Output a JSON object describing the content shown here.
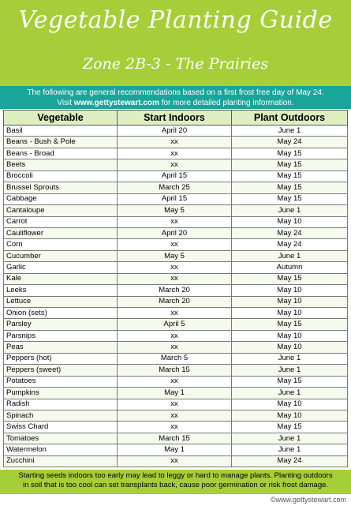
{
  "header": {
    "title": "Vegetable Planting Guide",
    "subtitle": "Zone 2B-3 - The Prairies"
  },
  "note": {
    "line1": "The following are general recommendations based on a first frost free day of May 24.",
    "line2_prefix": "Visit ",
    "line2_link": "www.gettystewart.com",
    "line2_suffix": " for more detailed planting information."
  },
  "table": {
    "headers": [
      "Vegetable",
      "Start Indoors",
      "Plant Outdoors"
    ],
    "rows": [
      [
        "Basil",
        "April 20",
        "June 1"
      ],
      [
        "Beans - Bush & Pole",
        "xx",
        "May 24"
      ],
      [
        "Beans - Broad",
        "xx",
        "May 15"
      ],
      [
        "Beets",
        "xx",
        "May 15"
      ],
      [
        "Broccoli",
        "April 15",
        "May 15"
      ],
      [
        "Brussel Sprouts",
        "March 25",
        "May 15"
      ],
      [
        "Cabbage",
        "April 15",
        "May 15"
      ],
      [
        "Cantaloupe",
        "May 5",
        "June 1"
      ],
      [
        "Carrot",
        "xx",
        "May 10"
      ],
      [
        "Cauliflower",
        "April 20",
        "May 24"
      ],
      [
        "Corn",
        "xx",
        "May 24"
      ],
      [
        "Cucumber",
        "May 5",
        "June 1"
      ],
      [
        "Garlic",
        "xx",
        "Autumn"
      ],
      [
        "Kale",
        "xx",
        "May 15"
      ],
      [
        "Leeks",
        "March 20",
        "May 10"
      ],
      [
        "Lettuce",
        "March 20",
        "May 10"
      ],
      [
        "Onion (sets)",
        "xx",
        "May 10"
      ],
      [
        "Parsley",
        "April 5",
        "May 15"
      ],
      [
        "Parsnips",
        "xx",
        "May 10"
      ],
      [
        "Peas",
        "xx",
        "May 10"
      ],
      [
        "Peppers (hot)",
        "March 5",
        "June 1"
      ],
      [
        "Peppers (sweet)",
        "March 15",
        "June 1"
      ],
      [
        "Potatoes",
        "xx",
        "May 15"
      ],
      [
        "Pumpkins",
        "May 1",
        "June 1"
      ],
      [
        "Radish",
        "xx",
        "May 10"
      ],
      [
        "Spinach",
        "xx",
        "May 10"
      ],
      [
        "Swiss Chard",
        "xx",
        "May 15"
      ],
      [
        "Tomatoes",
        "March 15",
        "June 1"
      ],
      [
        "Watermelon",
        "May 1",
        "June 1"
      ],
      [
        "Zucchini",
        "xx",
        "May 24"
      ]
    ]
  },
  "footer": {
    "line1": "Starting seeds indoors too early may lead to leggy or hard to manage plants. Planting outdoors",
    "line2": "in soil that is too cool can set transplants back, cause poor germination or risk frost damage."
  },
  "credit": "©www.gettystewart.com",
  "colors": {
    "header_green": "#a6ce39",
    "note_teal": "#1aa59b",
    "table_header": "#ddeec0"
  }
}
